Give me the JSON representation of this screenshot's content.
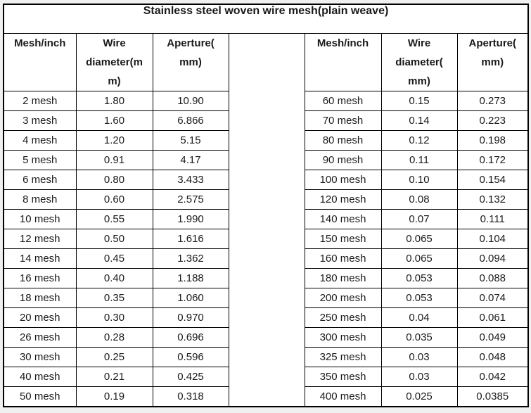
{
  "title": "Stainless steel woven wire mesh(plain weave)",
  "left_table": {
    "headers": [
      "Mesh/inch",
      "Wire\ndiameter(m\nm)",
      "Aperture(\nmm)"
    ],
    "rows": [
      [
        "2 mesh",
        "1.80",
        "10.90"
      ],
      [
        "3 mesh",
        "1.60",
        "6.866"
      ],
      [
        "4 mesh",
        "1.20",
        "5.15"
      ],
      [
        "5 mesh",
        "0.91",
        "4.17"
      ],
      [
        "6 mesh",
        "0.80",
        "3.433"
      ],
      [
        "8 mesh",
        "0.60",
        "2.575"
      ],
      [
        "10 mesh",
        "0.55",
        "1.990"
      ],
      [
        "12 mesh",
        "0.50",
        "1.616"
      ],
      [
        "14 mesh",
        "0.45",
        "1.362"
      ],
      [
        "16 mesh",
        "0.40",
        "1.188"
      ],
      [
        "18 mesh",
        "0.35",
        "1.060"
      ],
      [
        "20 mesh",
        "0.30",
        "0.970"
      ],
      [
        "26 mesh",
        "0.28",
        "0.696"
      ],
      [
        "30 mesh",
        "0.25",
        "0.596"
      ],
      [
        "40 mesh",
        "0.21",
        "0.425"
      ],
      [
        "50 mesh",
        "0.19",
        "0.318"
      ]
    ]
  },
  "right_table": {
    "headers": [
      "Mesh/inch",
      "Wire\ndiameter(\nmm)",
      "Aperture(\nmm)"
    ],
    "rows": [
      [
        "60 mesh",
        "0.15",
        "0.273"
      ],
      [
        "70 mesh",
        "0.14",
        "0.223"
      ],
      [
        "80 mesh",
        "0.12",
        "0.198"
      ],
      [
        "90 mesh",
        "0.11",
        "0.172"
      ],
      [
        "100 mesh",
        "0.10",
        "0.154"
      ],
      [
        "120 mesh",
        "0.08",
        "0.132"
      ],
      [
        "140 mesh",
        "0.07",
        "0.111"
      ],
      [
        "150 mesh",
        "0.065",
        "0.104"
      ],
      [
        "160 mesh",
        "0.065",
        "0.094"
      ],
      [
        "180 mesh",
        "0.053",
        "0.088"
      ],
      [
        "200 mesh",
        "0.053",
        "0.074"
      ],
      [
        "250 mesh",
        "0.04",
        "0.061"
      ],
      [
        "300 mesh",
        "0.035",
        "0.049"
      ],
      [
        "325 mesh",
        "0.03",
        "0.048"
      ],
      [
        "350 mesh",
        "0.03",
        "0.042"
      ],
      [
        "400 mesh",
        "0.025",
        "0.0385"
      ]
    ]
  },
  "colors": {
    "border": "#000000",
    "page_background": "#f0f0f0",
    "cell_background": "#ffffff",
    "text": "#1a1a1a"
  }
}
